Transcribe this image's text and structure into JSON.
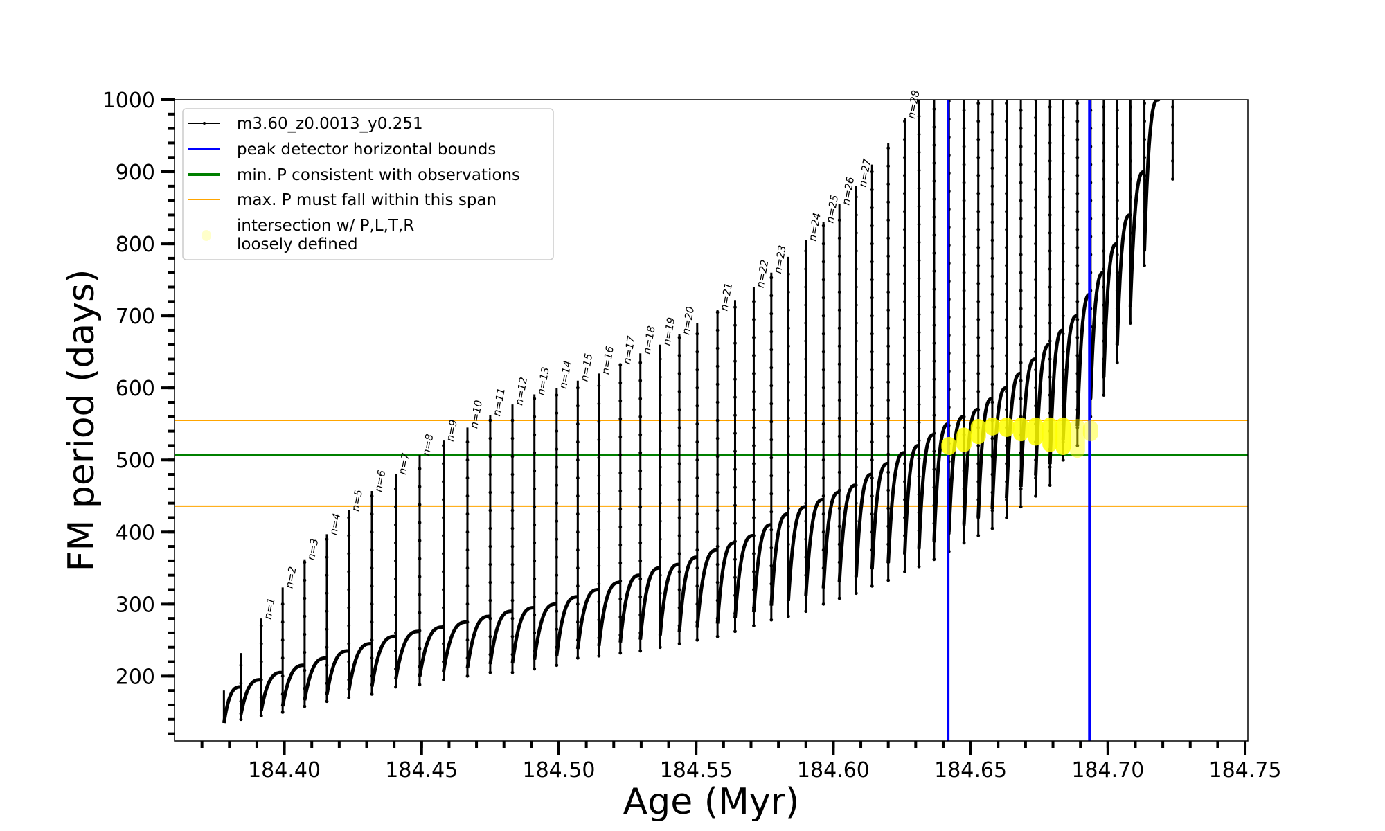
{
  "chart_data": {
    "type": "line",
    "title": "",
    "xlabel": "Age (Myr)",
    "ylabel": "FM period (days)",
    "xlim": [
      184.36,
      184.751
    ],
    "ylim": [
      110,
      1000
    ],
    "xticks": [
      "184.40",
      "184.45",
      "184.50",
      "184.55",
      "184.60",
      "184.65",
      "184.70",
      "184.75"
    ],
    "xtick_values": [
      184.4,
      184.45,
      184.5,
      184.55,
      184.6,
      184.65,
      184.7,
      184.75
    ],
    "xminor_step": 0.01,
    "yticks": [
      "200",
      "300",
      "400",
      "500",
      "600",
      "700",
      "800",
      "900",
      "1000"
    ],
    "ytick_values": [
      200,
      300,
      400,
      500,
      600,
      700,
      800,
      900,
      1000
    ],
    "yminor_step": 20,
    "grid": false,
    "legend_placement": "upper-left",
    "legend": [
      {
        "label": "m3.60_z0.0013_y0.251",
        "color": "#000000",
        "style": "line-with-dots"
      },
      {
        "label": "peak detector horizontal bounds",
        "color": "#0000ff",
        "style": "thick-line"
      },
      {
        "label": "min. P consistent with observations",
        "color": "#008000",
        "style": "thick-line"
      },
      {
        "label": "max. P must fall within this span",
        "color": "#ffa500",
        "style": "thin-line"
      },
      {
        "label": "intersection w/ P,L,T,R",
        "label_line2": "loosely defined",
        "color": "#ffff00",
        "style": "marker"
      }
    ],
    "series_start": {
      "age": 184.378,
      "period_min": 135,
      "period_max": 180
    },
    "spike_columns": [
      "age",
      "arc_max",
      "dip_min",
      "spike_max",
      "n"
    ],
    "spikes": [
      [
        184.3842,
        185,
        140,
        232,
        null
      ],
      [
        184.3916,
        195,
        145,
        280,
        "n=1"
      ],
      [
        184.3994,
        205,
        150,
        323,
        "n=2"
      ],
      [
        184.4074,
        215,
        158,
        362,
        "n=3"
      ],
      [
        184.4155,
        225,
        165,
        397,
        "n=4"
      ],
      [
        184.4235,
        235,
        170,
        430,
        "n=5"
      ],
      [
        184.4319,
        245,
        175,
        457,
        "n=6"
      ],
      [
        184.4406,
        255,
        185,
        481,
        "n=7"
      ],
      [
        184.4493,
        262,
        188,
        507,
        "n=8"
      ],
      [
        184.458,
        268,
        195,
        527,
        "n=9"
      ],
      [
        184.4667,
        275,
        200,
        545,
        "n=10"
      ],
      [
        184.475,
        283,
        205,
        562,
        "n=11"
      ],
      [
        184.4831,
        290,
        205,
        577,
        "n=12"
      ],
      [
        184.4911,
        295,
        210,
        591,
        "n=13"
      ],
      [
        184.4992,
        300,
        215,
        600,
        "n=14"
      ],
      [
        184.5069,
        310,
        225,
        610,
        "n=15"
      ],
      [
        184.5146,
        320,
        228,
        620,
        "n=16"
      ],
      [
        184.5224,
        330,
        232,
        634,
        "n=17"
      ],
      [
        184.5297,
        340,
        235,
        648,
        "n=18"
      ],
      [
        184.5369,
        350,
        240,
        660,
        "n=19"
      ],
      [
        184.5439,
        355,
        245,
        675,
        "n=20"
      ],
      [
        184.5504,
        365,
        250,
        690,
        null
      ],
      [
        184.5578,
        375,
        255,
        708,
        "n=21"
      ],
      [
        184.5642,
        385,
        262,
        722,
        null
      ],
      [
        184.571,
        395,
        270,
        740,
        "n=22"
      ],
      [
        184.5774,
        410,
        278,
        760,
        "n=23"
      ],
      [
        184.5836,
        425,
        283,
        782,
        null
      ],
      [
        184.59,
        435,
        290,
        805,
        "n=24"
      ],
      [
        184.5964,
        445,
        300,
        830,
        "n=25"
      ],
      [
        184.6022,
        455,
        308,
        855,
        "n=26"
      ],
      [
        184.6083,
        465,
        315,
        880,
        "n=27"
      ],
      [
        184.6141,
        480,
        325,
        910,
        null
      ],
      [
        184.62,
        495,
        333,
        940,
        null
      ],
      [
        184.626,
        510,
        345,
        975,
        "n=28"
      ],
      [
        184.6312,
        520,
        352,
        1100,
        null
      ],
      [
        184.6367,
        535,
        362,
        1100,
        null
      ],
      [
        184.6421,
        550,
        373,
        1100,
        null
      ],
      [
        184.6476,
        560,
        385,
        1100,
        null
      ],
      [
        184.6528,
        570,
        395,
        1100,
        null
      ],
      [
        184.6579,
        585,
        405,
        1100,
        null
      ],
      [
        184.6631,
        600,
        420,
        1100,
        null
      ],
      [
        184.6683,
        620,
        435,
        1100,
        null
      ],
      [
        184.6737,
        640,
        450,
        1100,
        null
      ],
      [
        184.6789,
        660,
        465,
        1100,
        null
      ],
      [
        184.6837,
        680,
        500,
        1100,
        null
      ],
      [
        184.6889,
        700,
        520,
        1100,
        null
      ],
      [
        184.6937,
        730,
        560,
        1100,
        null
      ],
      [
        184.6985,
        760,
        590,
        1100,
        null
      ],
      [
        184.7034,
        800,
        635,
        1100,
        null
      ],
      [
        184.7082,
        840,
        690,
        1100,
        null
      ],
      [
        184.7133,
        900,
        770,
        1100,
        null
      ],
      [
        184.7185,
        1000,
        1000,
        1100,
        null
      ],
      [
        184.7236,
        1050,
        890,
        1100,
        null
      ]
    ],
    "hlines": [
      {
        "label": "max. P must fall within this span",
        "value": 555,
        "color": "#ffa500"
      },
      {
        "label": "max. P must fall within this span",
        "value": 436,
        "color": "#ffa500"
      },
      {
        "label": "min. P consistent with observations",
        "value": 507,
        "color": "#008000"
      }
    ],
    "vlines": [
      {
        "label": "peak detector horizontal bounds",
        "value": 184.6418,
        "color": "#0000ff"
      },
      {
        "label": "peak detector horizontal bounds",
        "value": 184.6933,
        "color": "#0000ff"
      }
    ],
    "intersections": [
      {
        "age": 184.6421,
        "period_range": [
          507,
          532
        ]
      },
      {
        "age": 184.6476,
        "period_range": [
          511,
          545
        ]
      },
      {
        "age": 184.6528,
        "period_range": [
          522,
          557
        ]
      },
      {
        "age": 184.6579,
        "period_range": [
          534,
          559
        ]
      },
      {
        "age": 184.6631,
        "period_range": [
          532,
          559
        ]
      },
      {
        "age": 184.6683,
        "period_range": [
          526,
          559
        ]
      },
      {
        "age": 184.6737,
        "period_range": [
          520,
          559
        ]
      },
      {
        "age": 184.6789,
        "period_range": [
          511,
          559
        ]
      },
      {
        "age": 184.6837,
        "period_range": [
          507,
          559
        ]
      },
      {
        "age": 184.6889,
        "period_range": [
          503,
          557
        ]
      },
      {
        "age": 184.6937,
        "period_range": [
          526,
          555
        ]
      }
    ]
  }
}
